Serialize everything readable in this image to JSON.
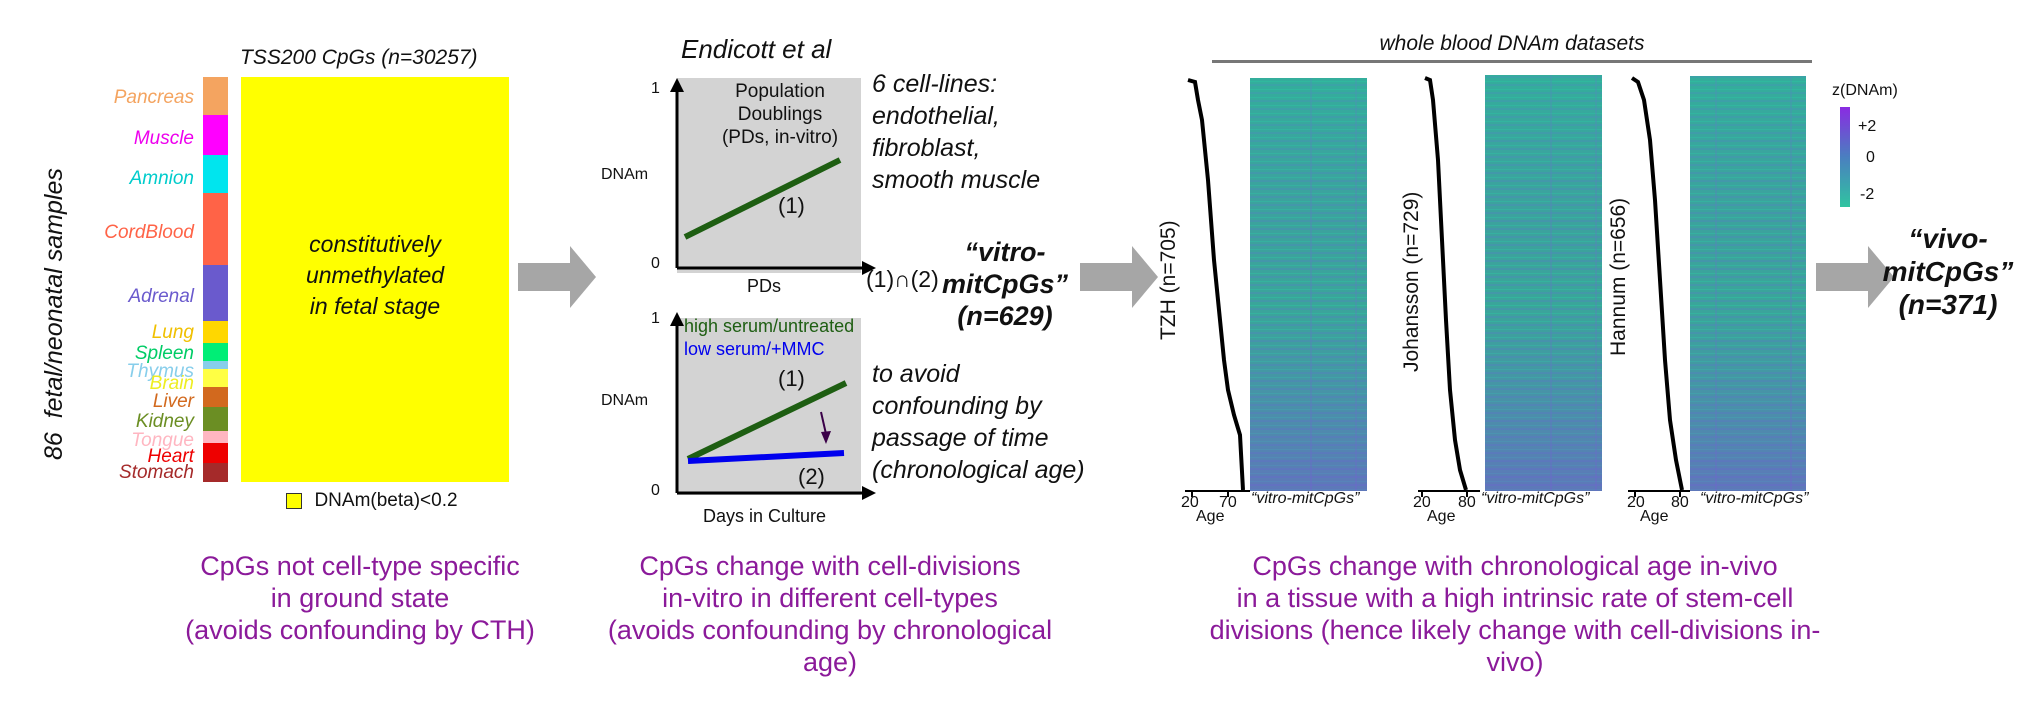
{
  "panel1": {
    "ylabel": "86  fetal/neonatal samples",
    "title": "TSS200 CpGs (n=30257)",
    "center_text": [
      "constitutively",
      "unmethylated",
      "in fetal stage"
    ],
    "legend": "DNAm(beta)<0.2",
    "tissues": [
      {
        "name": "Pancreas",
        "color": "#f4a460",
        "text_color": "#f4a460"
      },
      {
        "name": "Muscle",
        "color": "#ff00ff",
        "text_color": "#ee00ee"
      },
      {
        "name": "Amnion",
        "color": "#00e5ee",
        "text_color": "#00cccc"
      },
      {
        "name": "CordBlood",
        "color": "#ff6347",
        "text_color": "#ff6347"
      },
      {
        "name": "Adrenal",
        "color": "#6a5acd",
        "text_color": "#6a5acd"
      },
      {
        "name": "Lung",
        "color": "#ffd700",
        "text_color": "#f0c000"
      },
      {
        "name": "Spleen",
        "color": "#00ee76",
        "text_color": "#00cc66"
      },
      {
        "name": "Thymus",
        "color": "#87ceeb",
        "text_color": "#87ceeb"
      },
      {
        "name": "Brain",
        "color": "#ffff44",
        "text_color": "#eeee22"
      },
      {
        "name": "Liver",
        "color": "#d2691e",
        "text_color": "#d2691e"
      },
      {
        "name": "Kidney",
        "color": "#6b8e23",
        "text_color": "#6b8e23"
      },
      {
        "name": "Tongue",
        "color": "#ffb6c1",
        "text_color": "#ffb6c1"
      },
      {
        "name": "Heart",
        "color": "#ee0000",
        "text_color": "#ee0000"
      },
      {
        "name": "Stomach",
        "color": "#a52a2a",
        "text_color": "#a52a2a"
      }
    ],
    "caption": [
      "CpGs not cell-type specific",
      "in ground state",
      "(avoids confounding by CTH)"
    ]
  },
  "panel2": {
    "title": "Endicott et al",
    "top_plot": {
      "y_top": "1",
      "y_bottom": "0",
      "ylabel": "DNAm",
      "xlabel": "PDs",
      "box_text": [
        "Population",
        "Doublings",
        "(PDs, in-vitro)"
      ],
      "line_label": "(1)"
    },
    "bottom_plot": {
      "y_top": "1",
      "y_bottom": "0",
      "ylabel": "DNAm",
      "xlabel": "Days in Culture",
      "legend_green": "high serum/untreated",
      "legend_blue": "low serum/+MMC",
      "label1": "(1)",
      "label2": "(2)"
    },
    "right_text_top": [
      "6 cell-lines:",
      "endothelial,",
      "fibroblast,",
      "smooth muscle"
    ],
    "right_text_bottom": [
      "to avoid",
      "confounding by",
      "passage of time",
      "(chronological age)"
    ],
    "intersect": "(1)∩(2)",
    "result": [
      "“vitro-",
      "mitCpGs”",
      "(n=629)"
    ],
    "caption": [
      "CpGs change with cell-divisions",
      "in-vitro in different cell-types",
      "(avoids confounding by chronological",
      "age)"
    ],
    "colors": {
      "green": "#1e5e12",
      "blue": "#0000ee"
    }
  },
  "panel3": {
    "title": "whole blood DNAm datasets",
    "datasets": [
      {
        "name": "TZH (n=705)",
        "ticks": [
          "20",
          "70"
        ],
        "axis_label": "Age",
        "heat_label": "“vitro-mitCpGs”"
      },
      {
        "name": "Johansson (n=729)",
        "ticks": [
          "20",
          "80"
        ],
        "axis_label": "Age",
        "heat_label": "“vitro-mitCpGs”"
      },
      {
        "name": "Hannum (n=656)",
        "ticks": [
          "20",
          "80"
        ],
        "axis_label": "Age",
        "heat_label": "“vitro-mitCpGs”"
      }
    ],
    "colorbar": {
      "title": "z(DNAm)",
      "ticks": [
        "+2",
        "0",
        "-2"
      ]
    },
    "caption": [
      "CpGs change with chronological age in-vivo",
      "in a tissue with a high intrinsic rate of stem-cell",
      "divisions (hence likely change with cell-divisions in-vivo)"
    ]
  },
  "result_final": [
    "“vivo-",
    "mitCpGs”",
    "(n=371)"
  ]
}
